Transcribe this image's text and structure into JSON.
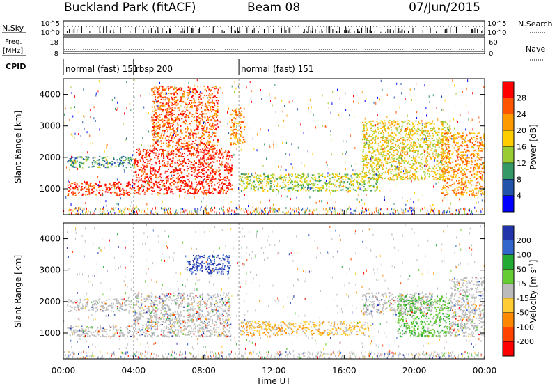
{
  "header": {
    "station": "Buckland Park (fitACF)",
    "beam": "Beam 08",
    "date": "07/Jun/2015"
  },
  "strip_labels": {
    "nsky": "N.Sky",
    "freq": "Freq.",
    "freq_unit": "[MHz]",
    "cpid": "CPID",
    "nsearch": "N.Search",
    "nave": "Nave"
  },
  "strip_ticks": {
    "nsky_top": "10^5",
    "nsky_bottom": "10^0",
    "freq_top": "18",
    "freq_bottom": "8",
    "nave_top": "60",
    "nave_bottom": "0"
  },
  "cpid_segments": [
    {
      "label": "normal (fast) 151",
      "start_h": 0,
      "end_h": 4
    },
    {
      "label": "rbsp 200",
      "start_h": 4,
      "end_h": 10
    },
    {
      "label": "normal (fast) 151",
      "start_h": 10,
      "end_h": 24
    }
  ],
  "chart_data": [
    {
      "type": "heatmap",
      "name": "power",
      "ylabel": "Slant Range [km]",
      "xlim_hours": [
        0,
        24
      ],
      "ylim": [
        180,
        4500
      ],
      "yticks": [
        1000,
        2000,
        3000,
        4000
      ],
      "colorbar_label": "Power [dB]",
      "colorbar_ticks": [
        "28",
        "24",
        "20",
        "16",
        "12",
        "8",
        "4"
      ],
      "colorbar_colors": [
        "#ff0000",
        "#ff5500",
        "#ff9900",
        "#ffcc00",
        "#99cc33",
        "#339966",
        "#2255aa",
        "#0000ff"
      ],
      "features": [
        {
          "t": [
            0.2,
            4.0
          ],
          "r": [
            800,
            1250
          ],
          "level": 0.9
        },
        {
          "t": [
            0.2,
            4.0
          ],
          "r": [
            1700,
            2050
          ],
          "level": 0.3
        },
        {
          "t": [
            4.0,
            9.6
          ],
          "r": [
            850,
            2300
          ],
          "level": 0.92
        },
        {
          "t": [
            5.0,
            8.8
          ],
          "r": [
            2300,
            4300
          ],
          "level": 0.8
        },
        {
          "t": [
            9.5,
            10.3
          ],
          "r": [
            2400,
            3600
          ],
          "level": 0.72
        },
        {
          "t": [
            10.0,
            18.0
          ],
          "r": [
            950,
            1500
          ],
          "level": 0.45
        },
        {
          "t": [
            17.0,
            22.0
          ],
          "r": [
            1300,
            3200
          ],
          "level": 0.55
        },
        {
          "t": [
            21.5,
            24.0
          ],
          "r": [
            800,
            2800
          ],
          "level": 0.7
        }
      ]
    },
    {
      "type": "heatmap",
      "name": "velocity",
      "ylabel": "Slant Range [km]",
      "xlabel": "Time UT",
      "xlim_hours": [
        0,
        24
      ],
      "xticks": [
        "00:00",
        "04:00",
        "08:00",
        "12:00",
        "16:00",
        "20:00",
        "00:00"
      ],
      "ylim": [
        180,
        4500
      ],
      "yticks": [
        1000,
        2000,
        3000,
        4000
      ],
      "colorbar_label": "Velocity [m s^-1]",
      "colorbar_ticks": [
        "200",
        "100",
        "50",
        "15",
        "-15",
        "-50",
        "-100",
        "-200"
      ],
      "colorbar_colors": [
        "#2233aa",
        "#3366cc",
        "#22aa33",
        "#66cc33",
        "#bbbbbb",
        "#ffcc33",
        "#ff8800",
        "#ff4400",
        "#ff0000"
      ],
      "features": [
        {
          "t": [
            0.2,
            4.0
          ],
          "r": [
            900,
            1250
          ],
          "v": 0
        },
        {
          "t": [
            0.2,
            4.0
          ],
          "r": [
            1700,
            2100
          ],
          "v": 0
        },
        {
          "t": [
            4.0,
            9.5
          ],
          "r": [
            900,
            2300
          ],
          "v": 0
        },
        {
          "t": [
            7.0,
            9.5
          ],
          "r": [
            2900,
            3500
          ],
          "v": 200
        },
        {
          "t": [
            10.0,
            17.5
          ],
          "r": [
            950,
            1400
          ],
          "v": -50
        },
        {
          "t": [
            17.0,
            21.0
          ],
          "r": [
            1600,
            2300
          ],
          "v": 0
        },
        {
          "t": [
            19.0,
            22.0
          ],
          "r": [
            900,
            2200
          ],
          "v": 50
        },
        {
          "t": [
            22.0,
            24.0
          ],
          "r": [
            900,
            2800
          ],
          "v": 0
        }
      ]
    }
  ]
}
